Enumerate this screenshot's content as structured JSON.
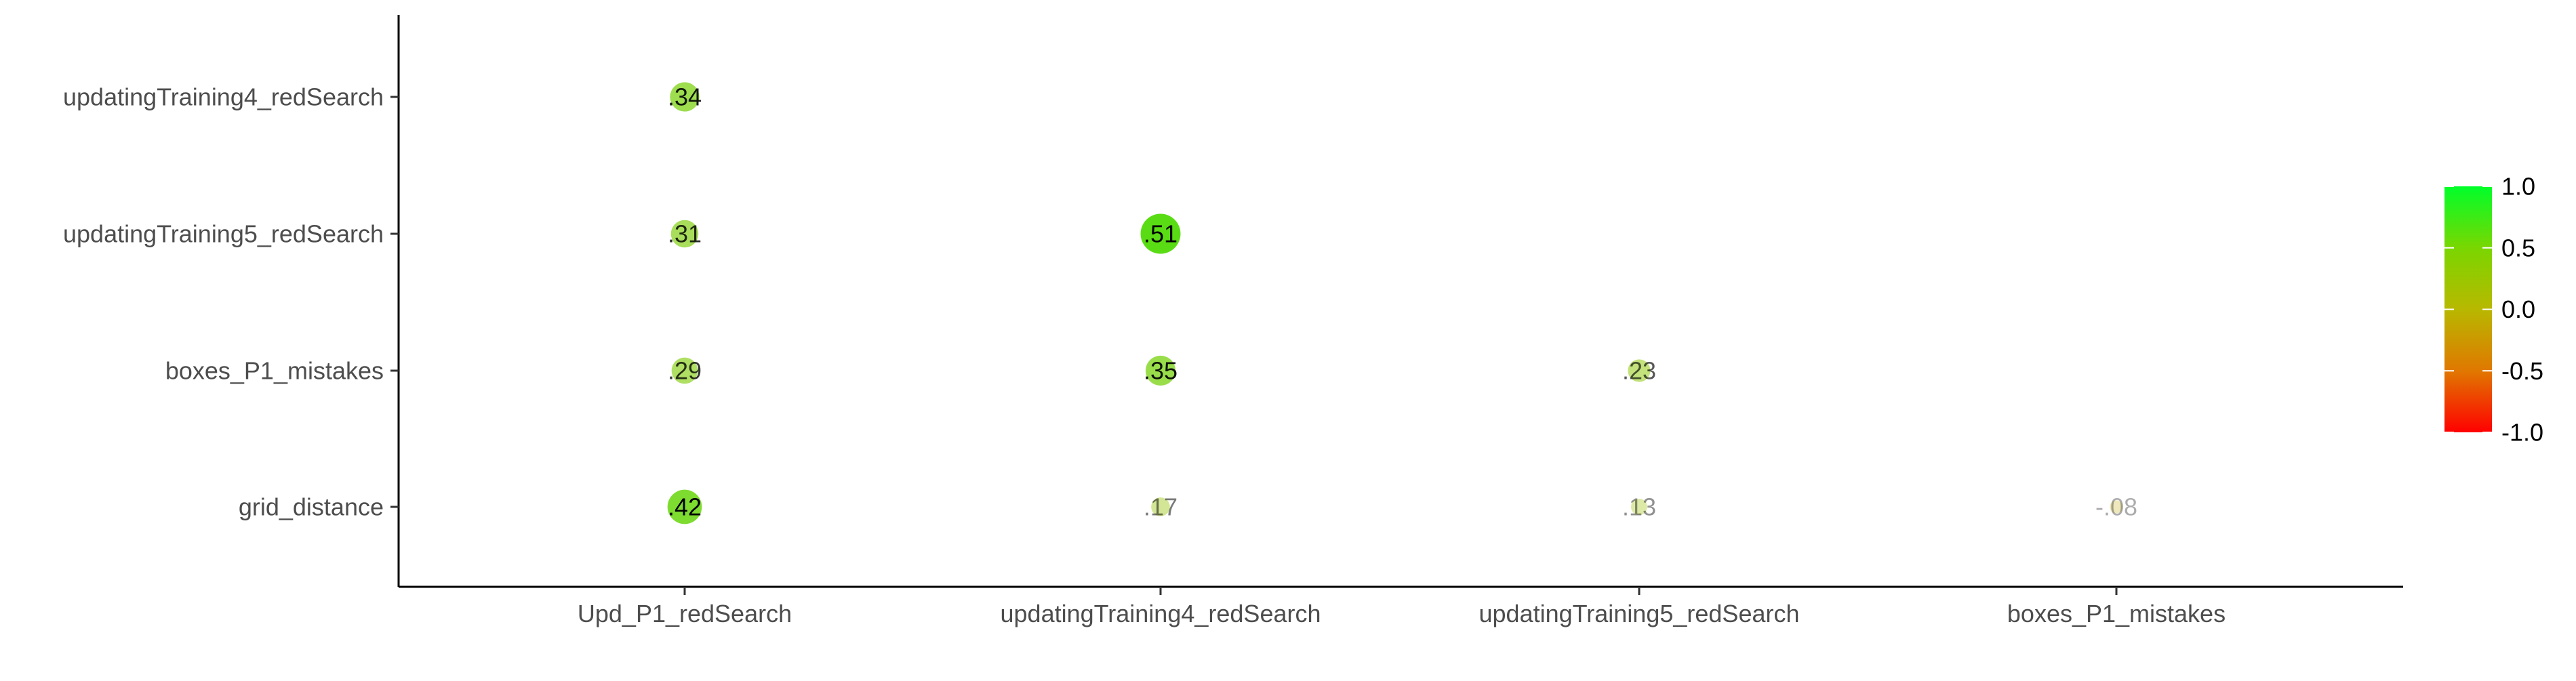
{
  "chart_data": {
    "type": "scatter",
    "subtype": "correlation-matrix-bubble",
    "title": "",
    "xlabel": "",
    "ylabel": "",
    "x_categories": [
      "Upd_P1_redSearch",
      "updatingTraining4_redSearch",
      "updatingTraining5_redSearch",
      "boxes_P1_mistakes"
    ],
    "y_categories": [
      "updatingTraining4_redSearch",
      "updatingTraining5_redSearch",
      "boxes_P1_mistakes",
      "grid_distance"
    ],
    "cells": [
      {
        "x": "Upd_P1_redSearch",
        "y": "updatingTraining4_redSearch",
        "value": 0.34,
        "label": ".34"
      },
      {
        "x": "Upd_P1_redSearch",
        "y": "updatingTraining5_redSearch",
        "value": 0.31,
        "label": ".31"
      },
      {
        "x": "Upd_P1_redSearch",
        "y": "boxes_P1_mistakes",
        "value": 0.29,
        "label": ".29"
      },
      {
        "x": "Upd_P1_redSearch",
        "y": "grid_distance",
        "value": 0.42,
        "label": ".42"
      },
      {
        "x": "updatingTraining4_redSearch",
        "y": "updatingTraining5_redSearch",
        "value": 0.51,
        "label": ".51"
      },
      {
        "x": "updatingTraining4_redSearch",
        "y": "boxes_P1_mistakes",
        "value": 0.35,
        "label": ".35"
      },
      {
        "x": "updatingTraining4_redSearch",
        "y": "grid_distance",
        "value": 0.17,
        "label": ".17"
      },
      {
        "x": "updatingTraining5_redSearch",
        "y": "boxes_P1_mistakes",
        "value": 0.23,
        "label": ".23"
      },
      {
        "x": "updatingTraining5_redSearch",
        "y": "grid_distance",
        "value": 0.13,
        "label": ".13"
      },
      {
        "x": "boxes_P1_mistakes",
        "y": "grid_distance",
        "value": -0.08,
        "label": "-.08"
      }
    ],
    "legend": {
      "position": "right",
      "type": "colorbar",
      "range": [
        -1.0,
        1.0
      ],
      "ticks": [
        "1.0",
        "0.5",
        "0.0",
        "-0.5",
        "-1.0"
      ],
      "colors": {
        "high": "#00ff2a",
        "mid": "#b8b800",
        "low": "#ff0000"
      }
    },
    "grid": false
  }
}
